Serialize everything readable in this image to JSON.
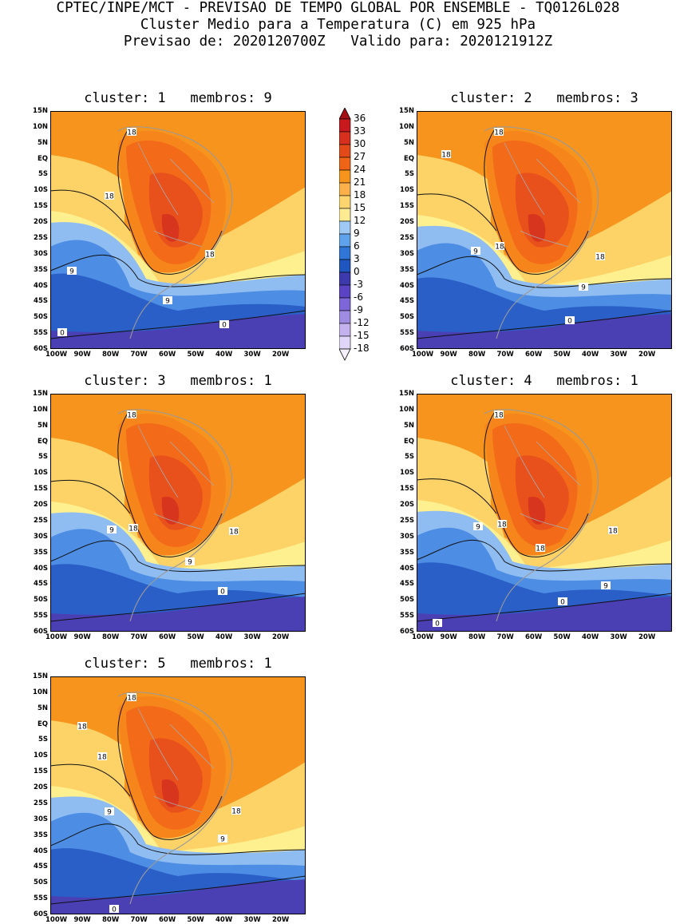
{
  "header": {
    "line1": "CPTEC/INPE/MCT - PREVISAO DE TEMPO GLOBAL POR ENSEMBLE - TQ0126L028",
    "line2": "Cluster Medio para a Temperatura (C) em 925 hPa",
    "line3": "Previsao de: 2020120700Z   Valido para: 2020121912Z"
  },
  "lat_labels": [
    "15N",
    "10N",
    "5N",
    "EQ",
    "5S",
    "10S",
    "15S",
    "20S",
    "25S",
    "30S",
    "35S",
    "40S",
    "45S",
    "50S",
    "55S",
    "60S"
  ],
  "lon_labels": [
    "100W",
    "90W",
    "80W",
    "70W",
    "60W",
    "50W",
    "40W",
    "30W",
    "20W"
  ],
  "colorbar": {
    "levels": [
      "36",
      "33",
      "30",
      "27",
      "24",
      "21",
      "18",
      "15",
      "12",
      "9",
      "6",
      "3",
      "0",
      "-3",
      "-6",
      "-9",
      "-12",
      "-15",
      "-18"
    ],
    "colors": [
      "#a50f15",
      "#c8191e",
      "#d7301f",
      "#e34a1a",
      "#f06417",
      "#f7941d",
      "#fbb04a",
      "#fdd56e",
      "#ffeb94",
      "#9ec9f5",
      "#5fa2ec",
      "#2f76d6",
      "#1f56c0",
      "#3c3aad",
      "#5a44c4",
      "#7d67d8",
      "#a08be3",
      "#c3b2ee",
      "#e0d6f7"
    ]
  },
  "panels": [
    {
      "title": "cluster: 1   membros: 9",
      "contour_labels": [
        "18",
        "18",
        "18",
        "9",
        "9",
        "0",
        "0"
      ]
    },
    {
      "title": "cluster: 2   membros: 3",
      "contour_labels": [
        "18",
        "18",
        "18",
        "18",
        "9",
        "9",
        "0"
      ]
    },
    {
      "title": "cluster: 3   membros: 1",
      "contour_labels": [
        "18",
        "18",
        "18",
        "9",
        "9",
        "0"
      ]
    },
    {
      "title": "cluster: 4   membros: 1",
      "contour_labels": [
        "18",
        "18",
        "18",
        "18",
        "9",
        "9",
        "0",
        "0"
      ]
    },
    {
      "title": "cluster: 5   membros: 1",
      "contour_labels": [
        "18",
        "18",
        "18",
        "18",
        "9",
        "9",
        "0"
      ]
    }
  ]
}
